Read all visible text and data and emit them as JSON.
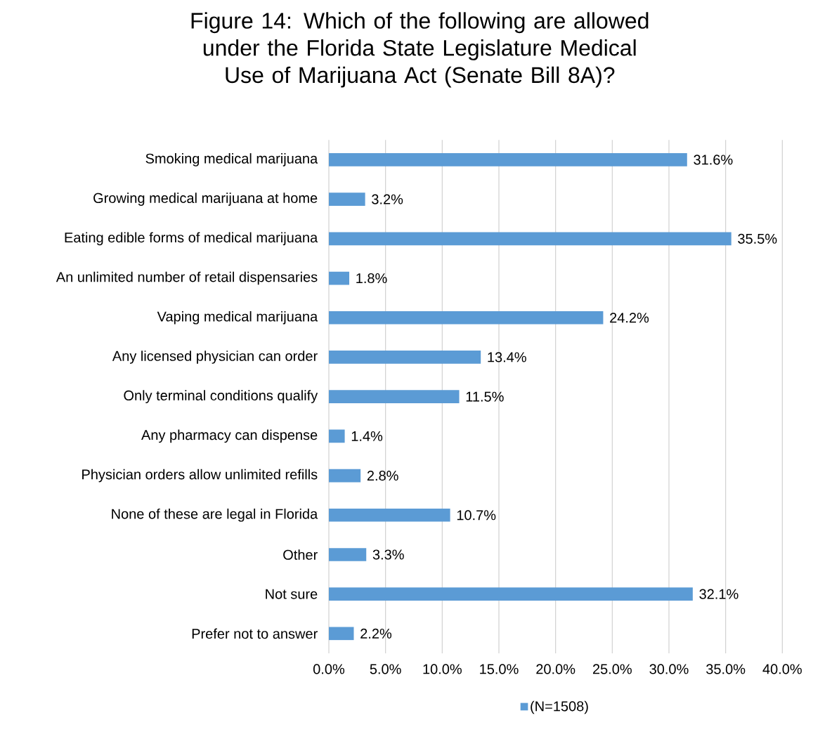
{
  "chart_data": {
    "type": "bar",
    "orientation": "horizontal",
    "title": "Figure 14: Which of the following are allowed under the Florida State Legislature Medical Use of Marijuana Act (Senate Bill 8A)?",
    "categories": [
      "Smoking medical marijuana",
      "Growing medical marijuana at home",
      "Eating edible forms of medical marijuana",
      "An unlimited number of retail dispensaries",
      "Vaping medical marijuana",
      "Any licensed physician can order",
      "Only terminal conditions qualify",
      "Any pharmacy can dispense",
      "Physician orders allow unlimited refills",
      "None of these are legal in Florida",
      "Other",
      "Not sure",
      "Prefer not to answer"
    ],
    "series": [
      {
        "name": "(N=1508)",
        "color": "#5b9bd5",
        "values": [
          31.6,
          3.2,
          35.5,
          1.8,
          24.2,
          13.4,
          11.5,
          1.4,
          2.8,
          10.7,
          3.3,
          32.1,
          2.2
        ],
        "value_labels": [
          "31.6%",
          "3.2%",
          "35.5%",
          "1.8%",
          "24.2%",
          "13.4%",
          "11.5%",
          "1.4%",
          "2.8%",
          "10.7%",
          "3.3%",
          "32.1%",
          "2.2%"
        ]
      }
    ],
    "xlim": [
      0,
      40
    ],
    "xticks": [
      {
        "value": 0,
        "label": "0.0%"
      },
      {
        "value": 5,
        "label": "5.0%"
      },
      {
        "value": 10,
        "label": "10.0%"
      },
      {
        "value": 15,
        "label": "15.0%"
      },
      {
        "value": 20,
        "label": "20.0%"
      },
      {
        "value": 25,
        "label": "25.0%"
      },
      {
        "value": 30,
        "label": "30.0%"
      },
      {
        "value": 35,
        "label": "35.0%"
      },
      {
        "value": 40,
        "label": "40.0%"
      }
    ],
    "grid": "x",
    "legend": "bottom"
  }
}
